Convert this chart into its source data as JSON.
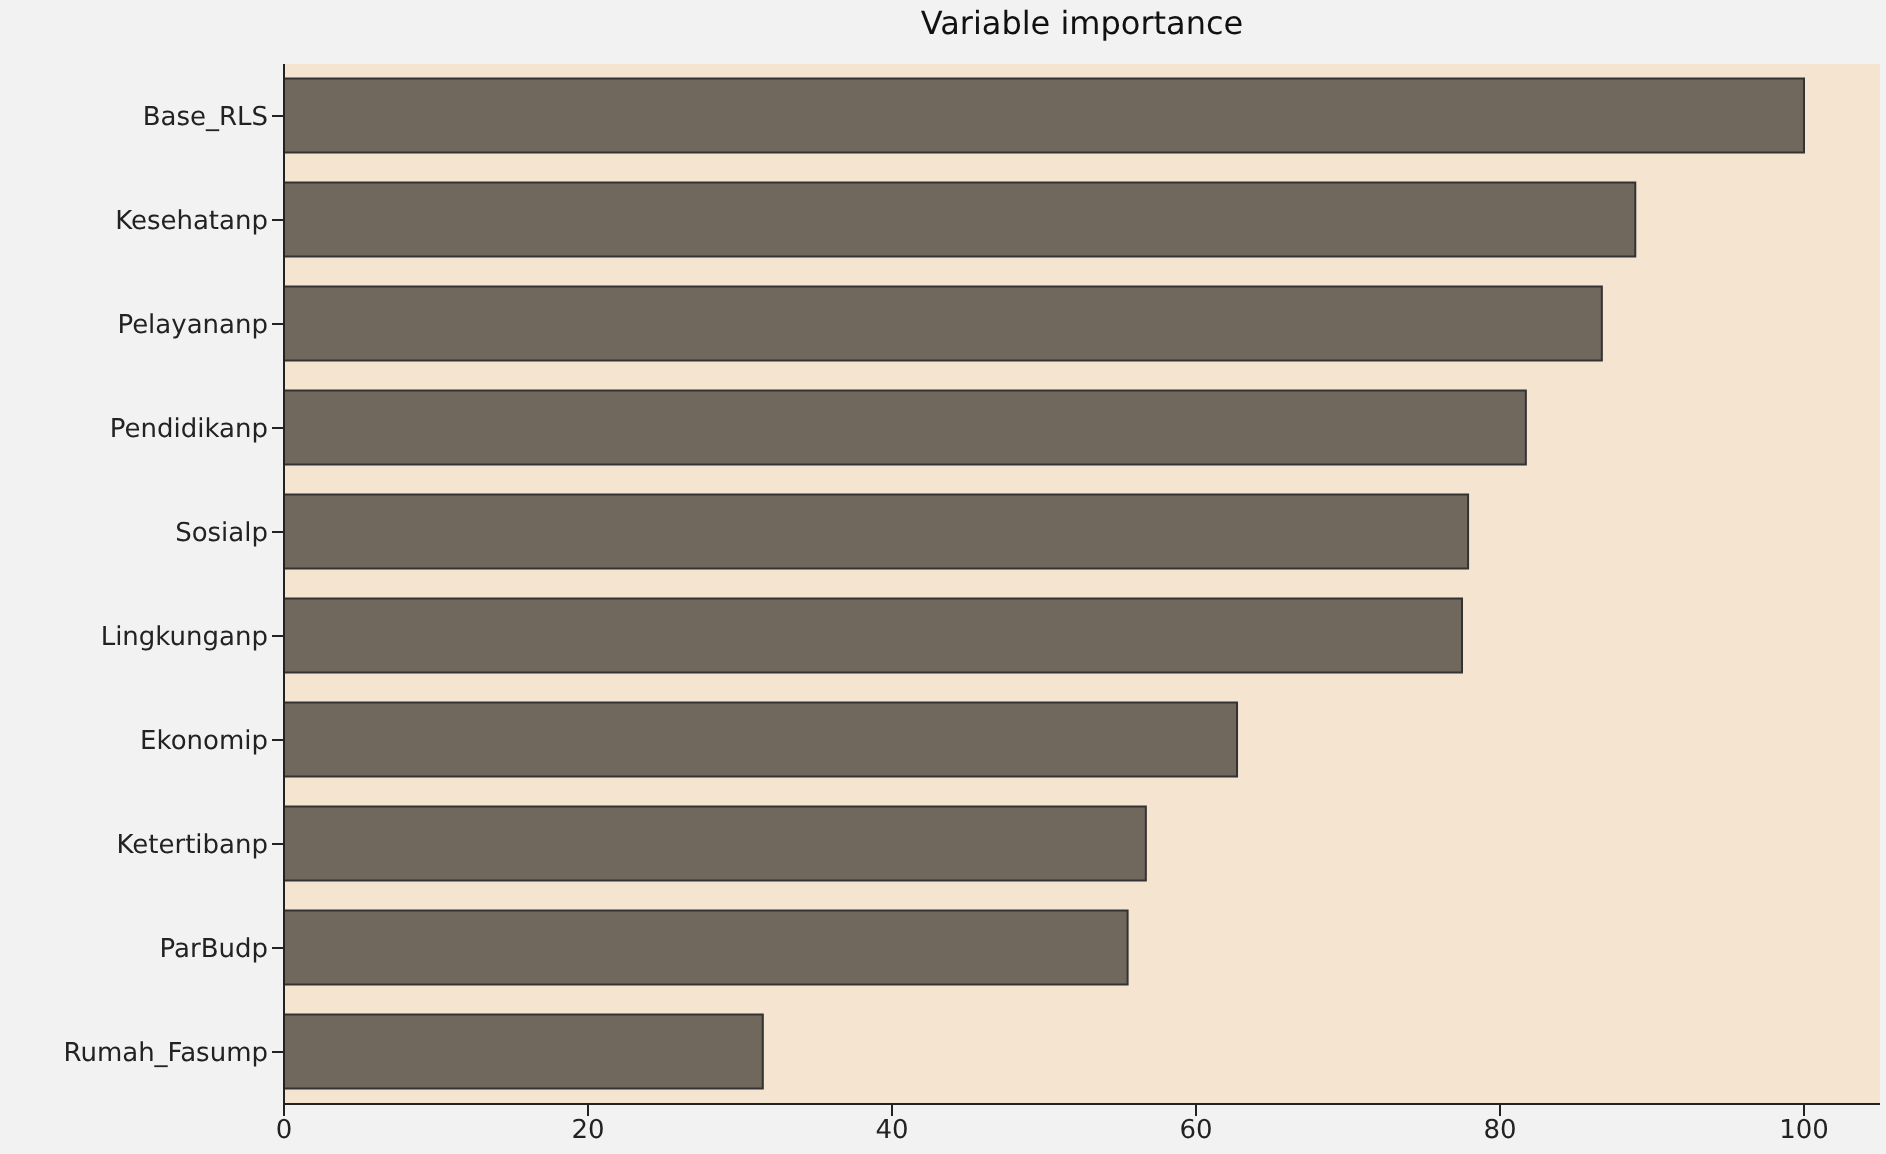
{
  "chart_data": {
    "type": "bar",
    "orientation": "horizontal",
    "title": "Variable importance",
    "categories": [
      "Base_RLS",
      "Kesehatanp",
      "Pelayananp",
      "Pendidikanp",
      "Sosialp",
      "Lingkunganp",
      "Ekonomip",
      "Ketertibanp",
      "ParBudp",
      "Rumah_Fasump"
    ],
    "values": [
      100,
      88.9,
      86.7,
      81.7,
      77.9,
      77.5,
      62.7,
      56.7,
      55.5,
      31.5
    ],
    "color": "#70675d",
    "xlim": [
      0,
      105
    ],
    "xticks": [
      0,
      20,
      40,
      60,
      80,
      100
    ],
    "grid": false
  }
}
